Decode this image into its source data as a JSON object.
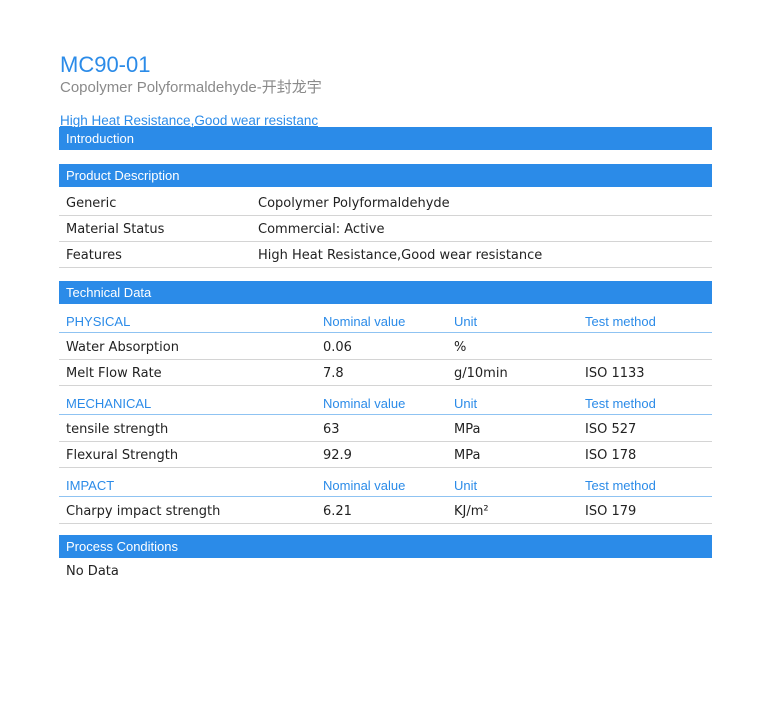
{
  "header": {
    "title": "MC90-01",
    "subtitle": "Copolymer Polyformaldehyde-开封龙宇",
    "tagline": "High Heat Resistance,Good wear resistanc"
  },
  "sections": {
    "introduction": "Introduction",
    "product_description": "Product Description",
    "technical_data": "Technical Data",
    "process_conditions": "Process Conditions"
  },
  "product_description": [
    {
      "label": "Generic",
      "value": "Copolymer Polyformaldehyde"
    },
    {
      "label": "Material Status",
      "value": "Commercial: Active"
    },
    {
      "label": "Features",
      "value": "High Heat Resistance,Good wear resistance"
    }
  ],
  "technical_data": {
    "columns": {
      "nominal": "Nominal value",
      "unit": "Unit",
      "test": "Test method"
    },
    "groups": [
      {
        "name": "PHYSICAL",
        "rows": [
          {
            "property": "Water Absorption",
            "value": "0.06",
            "unit": "%",
            "test": ""
          },
          {
            "property": "Melt Flow Rate",
            "value": "7.8",
            "unit": "g/10min",
            "test": "ISO 1133"
          }
        ]
      },
      {
        "name": "MECHANICAL",
        "rows": [
          {
            "property": "tensile strength",
            "value": "63",
            "unit": "MPa",
            "test": "ISO 527"
          },
          {
            "property": "Flexural Strength",
            "value": "92.9",
            "unit": "MPa",
            "test": "ISO 178"
          }
        ]
      },
      {
        "name": "IMPACT",
        "rows": [
          {
            "property": "Charpy impact strength",
            "value": "6.21",
            "unit": "KJ/m²",
            "test": "ISO 179"
          }
        ]
      }
    ]
  },
  "process_conditions": {
    "text": "No Data"
  },
  "colors": {
    "accent": "#2b8be8"
  }
}
